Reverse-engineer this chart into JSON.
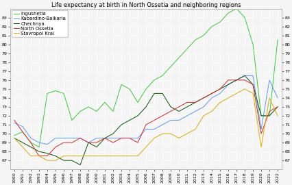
{
  "title": "Life expectancy at birth in North Ossetia and neighboring regions",
  "years": [
    1990,
    1991,
    1992,
    1993,
    1994,
    1995,
    1996,
    1997,
    1998,
    1999,
    2000,
    2001,
    2002,
    2003,
    2004,
    2005,
    2006,
    2007,
    2008,
    2009,
    2010,
    2011,
    2012,
    2013,
    2014,
    2015,
    2016,
    2017,
    2018,
    2019,
    2020,
    2021,
    2022
  ],
  "series": {
    "Ingushetia": {
      "color": "#33cc33",
      "data": [
        69.8,
        70.2,
        69.0,
        68.5,
        74.5,
        74.8,
        74.5,
        71.5,
        72.5,
        73.0,
        72.5,
        73.5,
        72.5,
        75.5,
        75.0,
        73.5,
        75.0,
        76.0,
        76.5,
        77.5,
        78.5,
        79.5,
        80.5,
        81.0,
        82.0,
        82.5,
        83.5,
        84.0,
        83.0,
        80.0,
        72.0,
        72.0,
        80.5
      ]
    },
    "Kabardino-Balkaria": {
      "color": "#5599ff",
      "data": [
        71.2,
        70.8,
        69.5,
        69.0,
        68.8,
        69.5,
        69.5,
        69.5,
        69.5,
        69.0,
        69.5,
        69.5,
        69.5,
        69.5,
        69.5,
        69.5,
        70.5,
        70.5,
        71.0,
        71.5,
        71.5,
        72.0,
        72.5,
        73.0,
        74.0,
        74.5,
        75.5,
        76.0,
        76.5,
        76.5,
        70.5,
        76.0,
        74.0
      ]
    },
    "Chechnya": {
      "color": "#005500",
      "data": [
        69.5,
        69.0,
        68.5,
        68.0,
        67.8,
        67.5,
        67.0,
        67.0,
        66.5,
        69.0,
        68.5,
        69.5,
        70.0,
        71.0,
        71.5,
        72.0,
        73.0,
        74.5,
        74.5,
        73.0,
        72.5,
        73.0,
        73.5,
        74.0,
        74.5,
        75.0,
        75.5,
        76.0,
        76.5,
        75.5,
        72.0,
        72.0,
        73.0
      ]
    },
    "North Ossetia": {
      "color": "#dd2222",
      "data": [
        71.5,
        70.2,
        69.0,
        67.5,
        67.5,
        68.5,
        69.0,
        69.0,
        69.5,
        69.0,
        69.0,
        69.5,
        69.0,
        69.5,
        69.5,
        69.0,
        71.0,
        71.5,
        72.0,
        72.5,
        73.0,
        73.5,
        73.5,
        74.0,
        74.5,
        75.0,
        76.0,
        76.0,
        76.0,
        75.5,
        70.0,
        72.5,
        73.0
      ]
    },
    "Stavropol Krai": {
      "color": "#ddaa00",
      "data": [
        69.5,
        68.5,
        67.5,
        67.5,
        67.0,
        67.0,
        67.5,
        67.5,
        67.5,
        67.5,
        67.5,
        67.5,
        67.5,
        67.5,
        67.5,
        67.5,
        68.5,
        69.5,
        70.0,
        70.0,
        69.5,
        70.0,
        70.5,
        72.0,
        72.5,
        73.5,
        74.0,
        74.5,
        75.0,
        74.5,
        68.5,
        74.0,
        72.0
      ]
    }
  },
  "ylim": [
    66,
    84
  ],
  "yticks_left": [
    67,
    68,
    69,
    70,
    71,
    72,
    73,
    74,
    75,
    76,
    77,
    78,
    79,
    80,
    81,
    82,
    83
  ],
  "yticks_right": [
    67,
    68,
    69,
    70,
    71,
    72,
    73,
    74,
    75,
    76,
    77,
    78,
    79,
    80,
    81,
    82,
    83
  ],
  "title_fontsize": 6,
  "tick_fontsize": 4.5,
  "legend_fontsize": 5,
  "linewidth": 0.7,
  "background": "#f5f5f5",
  "grid_color": "#ffffff"
}
